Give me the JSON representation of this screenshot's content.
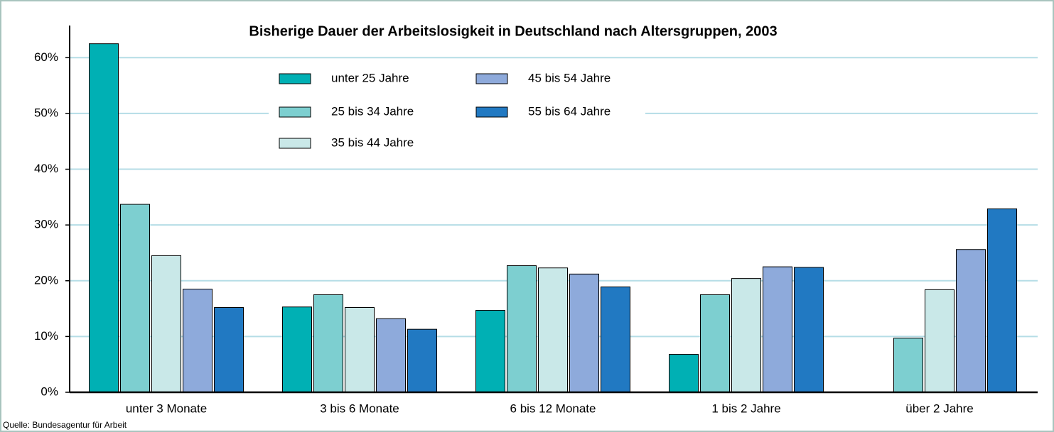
{
  "chart_data": {
    "type": "bar",
    "title": "Bisherige Dauer der Arbeitslosigkeit in Deutschland nach Altersgruppen, 2003",
    "source": "Quelle: Bundesagentur für Arbeit",
    "categories": [
      "unter 3 Monate",
      "3 bis 6 Monate",
      "6 bis 12 Monate",
      "1 bis 2 Jahre",
      "über 2 Jahre"
    ],
    "series": [
      {
        "name": "unter 25 Jahre",
        "color": "#00b0b4",
        "values": [
          62.5,
          15.3,
          14.7,
          6.8,
          null
        ]
      },
      {
        "name": "25 bis 34 Jahre",
        "color": "#7dcfd0",
        "values": [
          33.7,
          17.5,
          22.7,
          17.5,
          9.7
        ]
      },
      {
        "name": "35 bis 44 Jahre",
        "color": "#c9e8e8",
        "values": [
          24.5,
          15.2,
          22.3,
          20.4,
          18.4
        ]
      },
      {
        "name": "45 bis 54 Jahre",
        "color": "#8eaadb",
        "values": [
          18.5,
          13.2,
          21.2,
          22.5,
          25.6
        ]
      },
      {
        "name": "55 bis 64 Jahre",
        "color": "#2179c2",
        "values": [
          15.2,
          11.3,
          18.9,
          22.4,
          32.9
        ]
      }
    ],
    "ylim": [
      0,
      65
    ],
    "yticks": [
      {
        "value": 0,
        "label": "0%"
      },
      {
        "value": 10,
        "label": "10%"
      },
      {
        "value": 20,
        "label": "20%"
      },
      {
        "value": 30,
        "label": "30%"
      },
      {
        "value": 40,
        "label": "40%"
      },
      {
        "value": 50,
        "label": "50%"
      },
      {
        "value": 60,
        "label": "60%"
      }
    ],
    "grid": true
  }
}
